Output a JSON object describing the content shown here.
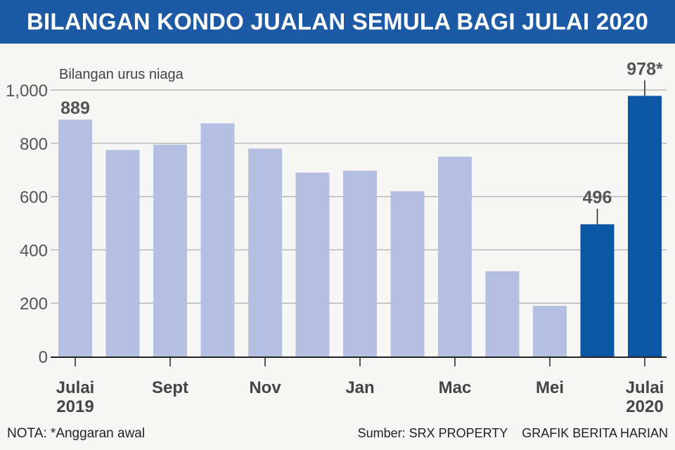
{
  "title": "BILANGAN KONDO JUALAN SEMULA BAGI JULAI 2020",
  "note": "NOTA: *Anggaran awal",
  "source": "Sumber: SRX PROPERTY",
  "credit": "GRAFIK BERITA HARIAN",
  "colors": {
    "title_bg": "#1c5aa6",
    "light_bar": "#b4bfe1",
    "dark_bar": "#0c56a6",
    "grid": "#b8b8b8"
  },
  "chart_data": {
    "type": "bar",
    "ylabel": "Bilangan urus niaga",
    "ylim": [
      0,
      1000
    ],
    "yticks": [
      0,
      200,
      400,
      600,
      800,
      1000
    ],
    "ytick_labels": [
      "0",
      "200",
      "400",
      "600",
      "800",
      "1,000"
    ],
    "categories": [
      "Jul 2019",
      "Aug 2019",
      "Sep 2019",
      "Oct 2019",
      "Nov 2019",
      "Dec 2019",
      "Jan 2020",
      "Feb 2020",
      "Mar 2020",
      "Apr 2020",
      "May 2020",
      "Jun 2020",
      "Jul 2020"
    ],
    "values": [
      889,
      775,
      795,
      875,
      780,
      690,
      697,
      620,
      750,
      320,
      190,
      496,
      978
    ],
    "highlight": [
      false,
      false,
      false,
      false,
      false,
      false,
      false,
      false,
      false,
      false,
      false,
      true,
      true
    ],
    "data_labels": [
      {
        "index": 0,
        "text": "889"
      },
      {
        "index": 11,
        "text": "496"
      },
      {
        "index": 12,
        "text": "978*"
      }
    ],
    "tick_labels": [
      {
        "index": 0,
        "lines": [
          "Julai",
          "2019"
        ]
      },
      {
        "index": 2,
        "lines": [
          "Sept"
        ]
      },
      {
        "index": 4,
        "lines": [
          "Nov"
        ]
      },
      {
        "index": 6,
        "lines": [
          "Jan"
        ]
      },
      {
        "index": 8,
        "lines": [
          "Mac"
        ]
      },
      {
        "index": 10,
        "lines": [
          "Mei"
        ]
      },
      {
        "index": 12,
        "lines": [
          "Julai",
          "2020"
        ]
      }
    ],
    "grid": true
  }
}
